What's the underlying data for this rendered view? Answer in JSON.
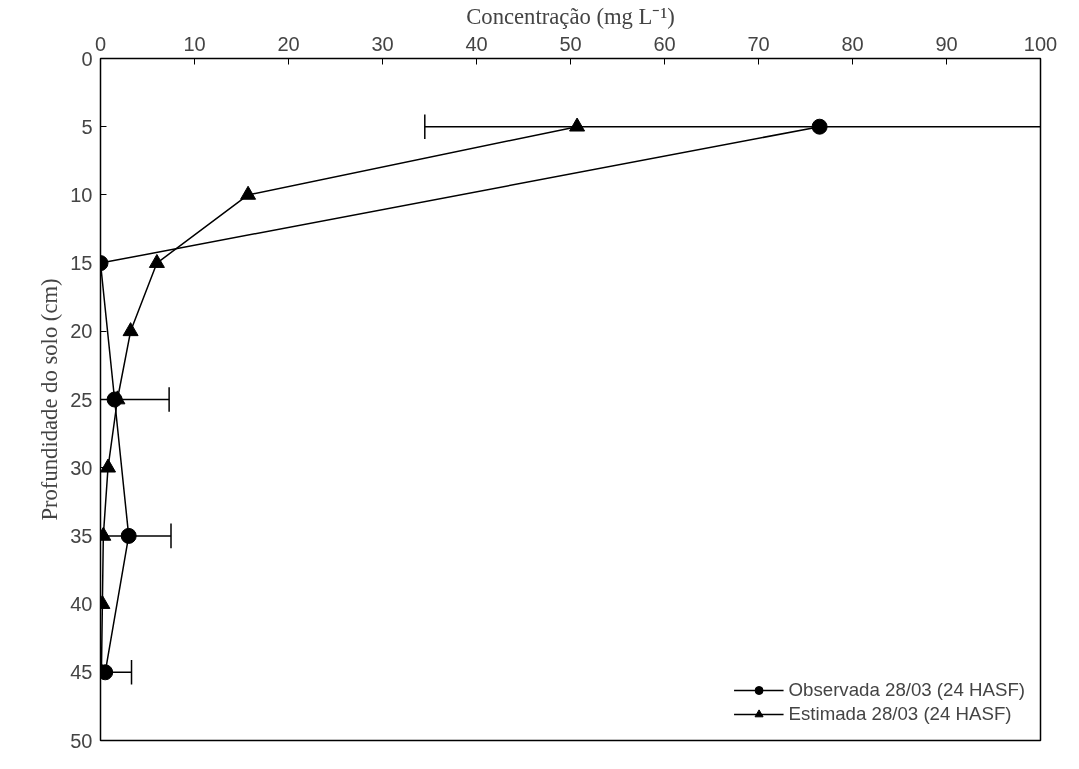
{
  "chart_data": {
    "type": "line",
    "xlabel": "Concentração (mg L⁻¹)",
    "ylabel": "Profundidade do solo (cm)",
    "xlim": [
      0,
      100
    ],
    "xticks": [
      0,
      10,
      20,
      30,
      40,
      50,
      60,
      70,
      80,
      90,
      100
    ],
    "ylim": [
      50,
      0
    ],
    "yticks": [
      0,
      5,
      10,
      15,
      20,
      25,
      30,
      35,
      40,
      45,
      50
    ],
    "grid": false,
    "legend": "bottom right",
    "line_style": "solid",
    "series": [
      {
        "name": "Observada 28/03 (24 HASF)",
        "color": "#000000",
        "marker": "circle",
        "x": [
          76.5,
          0,
          1.5,
          3,
          0.5
        ],
        "values": [
          5,
          15,
          25,
          35,
          45
        ],
        "xerrors": [
          [
            34.5,
            100
          ],
          null,
          [
            0,
            7.3
          ],
          [
            0,
            7.5
          ],
          [
            0,
            3.3
          ]
        ]
      },
      {
        "name": "Estimada 28/03 (24 HASF)",
        "color": "#000000",
        "marker": "triangle",
        "x": [
          50.7,
          15.7,
          6,
          3.2,
          1.8,
          0.8,
          0.3,
          0.2,
          0.1
        ],
        "values": [
          5,
          10,
          15,
          20,
          25,
          30,
          35,
          40,
          45
        ]
      }
    ]
  }
}
